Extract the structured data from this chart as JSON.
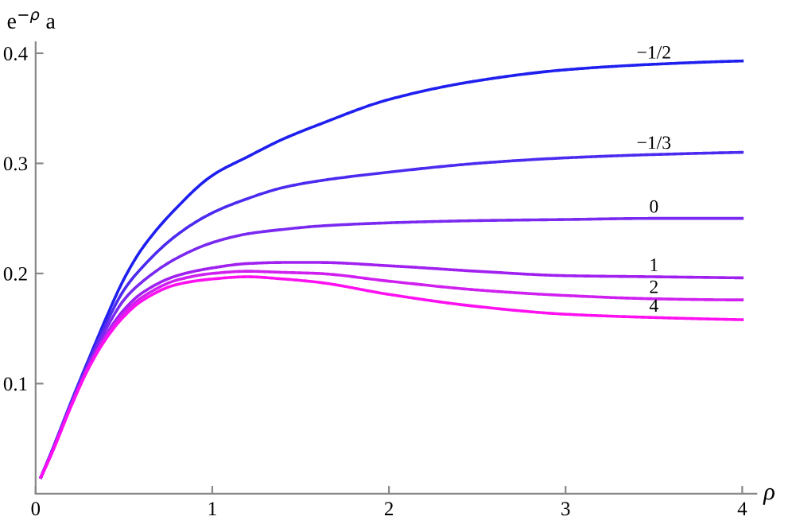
{
  "chart_data": {
    "type": "line",
    "xlabel": "ρ",
    "ylabel": "e$^{−ρ}$ a",
    "xlim": [
      0,
      4.08
    ],
    "ylim": [
      0,
      0.41
    ],
    "xticks": [
      0,
      1,
      2,
      3,
      4
    ],
    "yticks": [
      0.1,
      0.2,
      0.3,
      0.4
    ],
    "grid": false,
    "legend": false,
    "marker": "none",
    "line_style": "solid",
    "x": [
      0.03,
      0.1,
      0.2,
      0.3,
      0.4,
      0.5,
      0.6,
      0.8,
      1,
      1.2,
      1.4,
      1.6,
      2,
      2.5,
      3,
      3.5,
      4
    ],
    "series": [
      {
        "name": "−1/2",
        "color": "#1f1ff0",
        "values": [
          0.015,
          0.042,
          0.083,
          0.122,
          0.16,
          0.195,
          0.222,
          0.26,
          0.289,
          0.306,
          0.322,
          0.335,
          0.358,
          0.375,
          0.385,
          0.39,
          0.393
        ]
      },
      {
        "name": "−1/3",
        "color": "#4d2af0",
        "values": [
          0.015,
          0.042,
          0.082,
          0.12,
          0.155,
          0.185,
          0.205,
          0.235,
          0.255,
          0.268,
          0.278,
          0.284,
          0.292,
          0.3,
          0.305,
          0.308,
          0.31
        ]
      },
      {
        "name": "0",
        "color": "#7a2af0",
        "values": [
          0.015,
          0.041,
          0.081,
          0.118,
          0.15,
          0.176,
          0.192,
          0.214,
          0.228,
          0.236,
          0.24,
          0.243,
          0.246,
          0.248,
          0.249,
          0.25,
          0.25
        ]
      },
      {
        "name": "1",
        "color": "#a020f0",
        "values": [
          0.015,
          0.041,
          0.08,
          0.116,
          0.145,
          0.167,
          0.182,
          0.198,
          0.205,
          0.209,
          0.21,
          0.21,
          0.207,
          0.202,
          0.198,
          0.197,
          0.196
        ]
      },
      {
        "name": "2",
        "color": "#d020f0",
        "values": [
          0.015,
          0.04,
          0.08,
          0.115,
          0.143,
          0.164,
          0.178,
          0.194,
          0.2,
          0.202,
          0.201,
          0.2,
          0.193,
          0.185,
          0.18,
          0.177,
          0.176
        ]
      },
      {
        "name": "4",
        "color": "#ff10f0",
        "values": [
          0.015,
          0.04,
          0.079,
          0.114,
          0.141,
          0.161,
          0.175,
          0.19,
          0.195,
          0.197,
          0.195,
          0.192,
          0.181,
          0.17,
          0.163,
          0.16,
          0.158
        ]
      }
    ]
  }
}
